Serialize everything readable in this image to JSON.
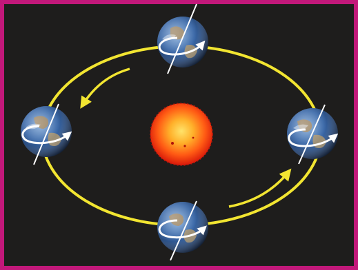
{
  "colors": {
    "border": "#c2187a",
    "background": "#1e1d1c",
    "orbit": "#f2e531",
    "sun_core": "#ffd84a",
    "sun_mid": "#ff7a1a",
    "sun_edge": "#e0200c",
    "earth_ocean": "#2f5f9e",
    "earth_land": "#b08a5a",
    "axis": "#ffffff"
  },
  "icons": {
    "sun": "sun-icon",
    "earth": "earth-icon",
    "rotation": "rotation-arrow-icon",
    "orbit_direction": "orbit-arrow-icon"
  },
  "diagram": {
    "earth_positions": [
      "top",
      "right",
      "bottom",
      "left"
    ],
    "orbit_direction": "counterclockwise",
    "axis_tilt_direction": "constant"
  }
}
